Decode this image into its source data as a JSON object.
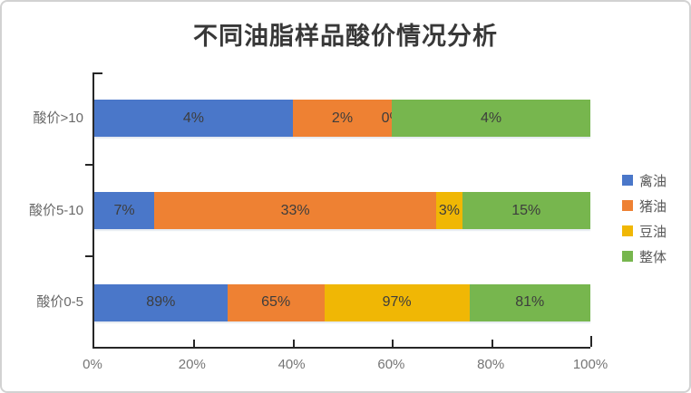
{
  "chart_data": {
    "type": "bar",
    "variant": "100-percent-stacked-horizontal",
    "title": "不同油脂样品酸价情况分析",
    "categories": [
      "酸价>10",
      "酸价5-10",
      "酸价0-5"
    ],
    "series": [
      {
        "name": "禽油",
        "color": "#4A77C9",
        "values": [
          4,
          7,
          89
        ],
        "labels": [
          "4%",
          "7%",
          "89%"
        ]
      },
      {
        "name": "猪油",
        "color": "#EE8133",
        "values": [
          2,
          33,
          65
        ],
        "labels": [
          "2%",
          "33%",
          "65%"
        ]
      },
      {
        "name": "豆油",
        "color": "#F0B705",
        "values": [
          0,
          3,
          97
        ],
        "labels": [
          "0%",
          "3%",
          "97%"
        ]
      },
      {
        "name": "整体",
        "color": "#77B64E",
        "values": [
          4,
          15,
          81
        ],
        "labels": [
          "4%",
          "15%",
          "81%"
        ]
      }
    ],
    "x_axis": {
      "tick_labels": [
        "0%",
        "20%",
        "40%",
        "60%",
        "80%",
        "100%"
      ],
      "range": [
        0,
        100
      ]
    },
    "legend": {
      "position": "right",
      "entries": [
        "禽油",
        "猪油",
        "豆油",
        "整体"
      ]
    },
    "grid": false,
    "note": "each category row is normalized to 100%; segment width = value / row sum"
  },
  "colors": {
    "axis": "#262626",
    "title_text": "#383838",
    "data_label_text": "#3d3d3d",
    "axis_tick_label_text": "#757575",
    "category_label_text": "#696969",
    "legend_label_text": "#595959",
    "frame_border": "#d2d2d2"
  }
}
